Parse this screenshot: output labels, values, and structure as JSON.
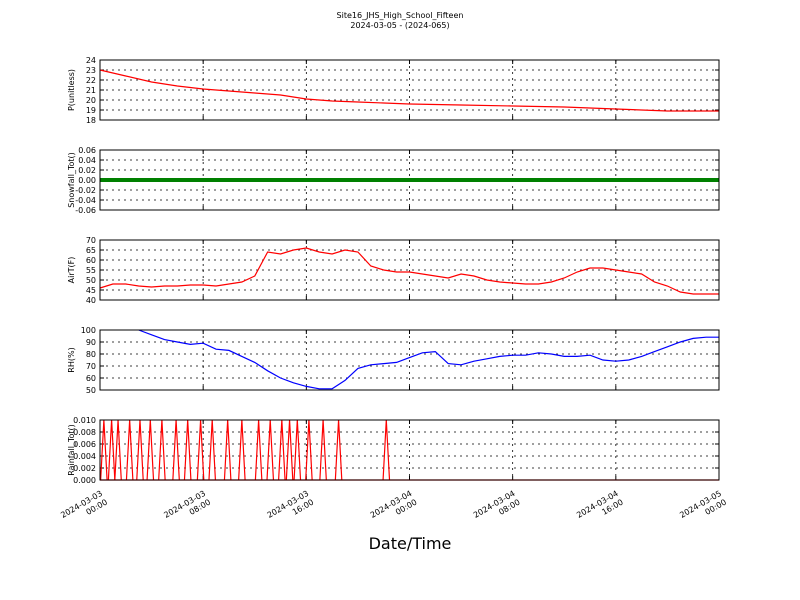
{
  "title": "Site16_JHS_High_School_Fifteen",
  "subtitle": "2024-03-05 - (2024-065)",
  "xlabel": "Date/Time",
  "x_ticks": [
    "2024-03-03 00:00",
    "2024-03-03 08:00",
    "2024-03-03 16:00",
    "2024-03-04 00:00",
    "2024-03-04 08:00",
    "2024-03-04 16:00",
    "2024-03-05 00:00"
  ],
  "chart_data": [
    {
      "type": "line",
      "ylabel": "P(unitless)",
      "ylim": [
        18,
        24
      ],
      "yticks": [
        18,
        19,
        20,
        21,
        22,
        23,
        24
      ],
      "grid": true,
      "series": [
        {
          "color": "#ff0000",
          "x_hours": [
            0,
            2,
            4,
            6,
            8,
            10,
            12,
            14,
            16,
            18,
            20,
            22,
            24,
            28,
            32,
            36,
            40,
            44,
            48
          ],
          "values": [
            23.0,
            22.4,
            21.8,
            21.4,
            21.1,
            20.9,
            20.7,
            20.5,
            20.1,
            19.9,
            19.8,
            19.7,
            19.6,
            19.5,
            19.4,
            19.3,
            19.1,
            18.9,
            18.9
          ]
        }
      ]
    },
    {
      "type": "line",
      "ylabel": "Snowfall_Tot()",
      "ylim": [
        -0.06,
        0.06
      ],
      "yticks": [
        -0.06,
        -0.04,
        -0.02,
        0.0,
        0.02,
        0.04,
        0.06
      ],
      "grid": true,
      "series": [
        {
          "color": "#008000",
          "x_hours": [
            0,
            48
          ],
          "values": [
            0,
            0
          ]
        }
      ]
    },
    {
      "type": "line",
      "ylabel": "AirT(F)",
      "ylim": [
        40,
        70
      ],
      "yticks": [
        40,
        45,
        50,
        55,
        60,
        65,
        70
      ],
      "grid": true,
      "series": [
        {
          "color": "#ff0000",
          "x_hours": [
            0,
            1,
            2,
            3,
            4,
            5,
            6,
            7,
            8,
            9,
            10,
            11,
            12,
            13,
            14,
            15,
            16,
            17,
            18,
            19,
            20,
            21,
            22,
            23,
            24,
            25,
            26,
            27,
            28,
            29,
            30,
            31,
            32,
            33,
            34,
            35,
            36,
            37,
            38,
            39,
            40,
            41,
            42,
            43,
            44,
            45,
            46,
            47,
            48
          ],
          "values": [
            46,
            48,
            48,
            47,
            46.5,
            47,
            47,
            47.5,
            47.5,
            47,
            48,
            49,
            52,
            64,
            63,
            65,
            66,
            64,
            63,
            65,
            64,
            57,
            55,
            54,
            54,
            53,
            52,
            51,
            53,
            52,
            50,
            49,
            48.5,
            48,
            48,
            49,
            51,
            54,
            56,
            56,
            55,
            54,
            53,
            49,
            47,
            44,
            43,
            43,
            43
          ]
        }
      ]
    },
    {
      "type": "line",
      "ylabel": "RH(%)",
      "ylim": [
        50,
        100
      ],
      "yticks": [
        50,
        60,
        70,
        80,
        90,
        100
      ],
      "grid": true,
      "series": [
        {
          "color": "#0000ff",
          "x_hours": [
            3,
            4,
            5,
            6,
            7,
            8,
            9,
            10,
            11,
            12,
            13,
            14,
            15,
            16,
            17,
            18,
            19,
            20,
            21,
            22,
            23,
            24,
            25,
            26,
            27,
            28,
            29,
            30,
            31,
            32,
            33,
            34,
            35,
            36,
            37,
            38,
            39,
            40,
            41,
            42,
            43,
            44,
            45,
            46,
            47,
            48
          ],
          "values": [
            100,
            96,
            92,
            90,
            88,
            89,
            84,
            83,
            78,
            73,
            66,
            60,
            56,
            53,
            51,
            51,
            58,
            68,
            71,
            72,
            73,
            77,
            81,
            82,
            72,
            71,
            74,
            76,
            78,
            79,
            79,
            81,
            80,
            78,
            78,
            79,
            75,
            74,
            75,
            78,
            82,
            86,
            90,
            93,
            94,
            94
          ]
        }
      ]
    },
    {
      "type": "line",
      "ylabel": "Rainfall_Tot()",
      "ylim": [
        0,
        0.01
      ],
      "yticks": [
        0.0,
        0.002,
        0.004,
        0.006,
        0.008,
        0.01
      ],
      "grid": true,
      "series": [
        {
          "color": "#ff0000",
          "spike_hours": [
            0.3,
            0.9,
            1.4,
            2.3,
            3.1,
            3.9,
            4.8,
            5.9,
            6.8,
            7.8,
            8.7,
            9.9,
            11.0,
            12.3,
            13.2,
            14.1,
            14.7,
            15.3,
            16.2,
            17.3,
            18.5,
            22.2
          ],
          "spike_value": 0.01
        }
      ]
    }
  ]
}
